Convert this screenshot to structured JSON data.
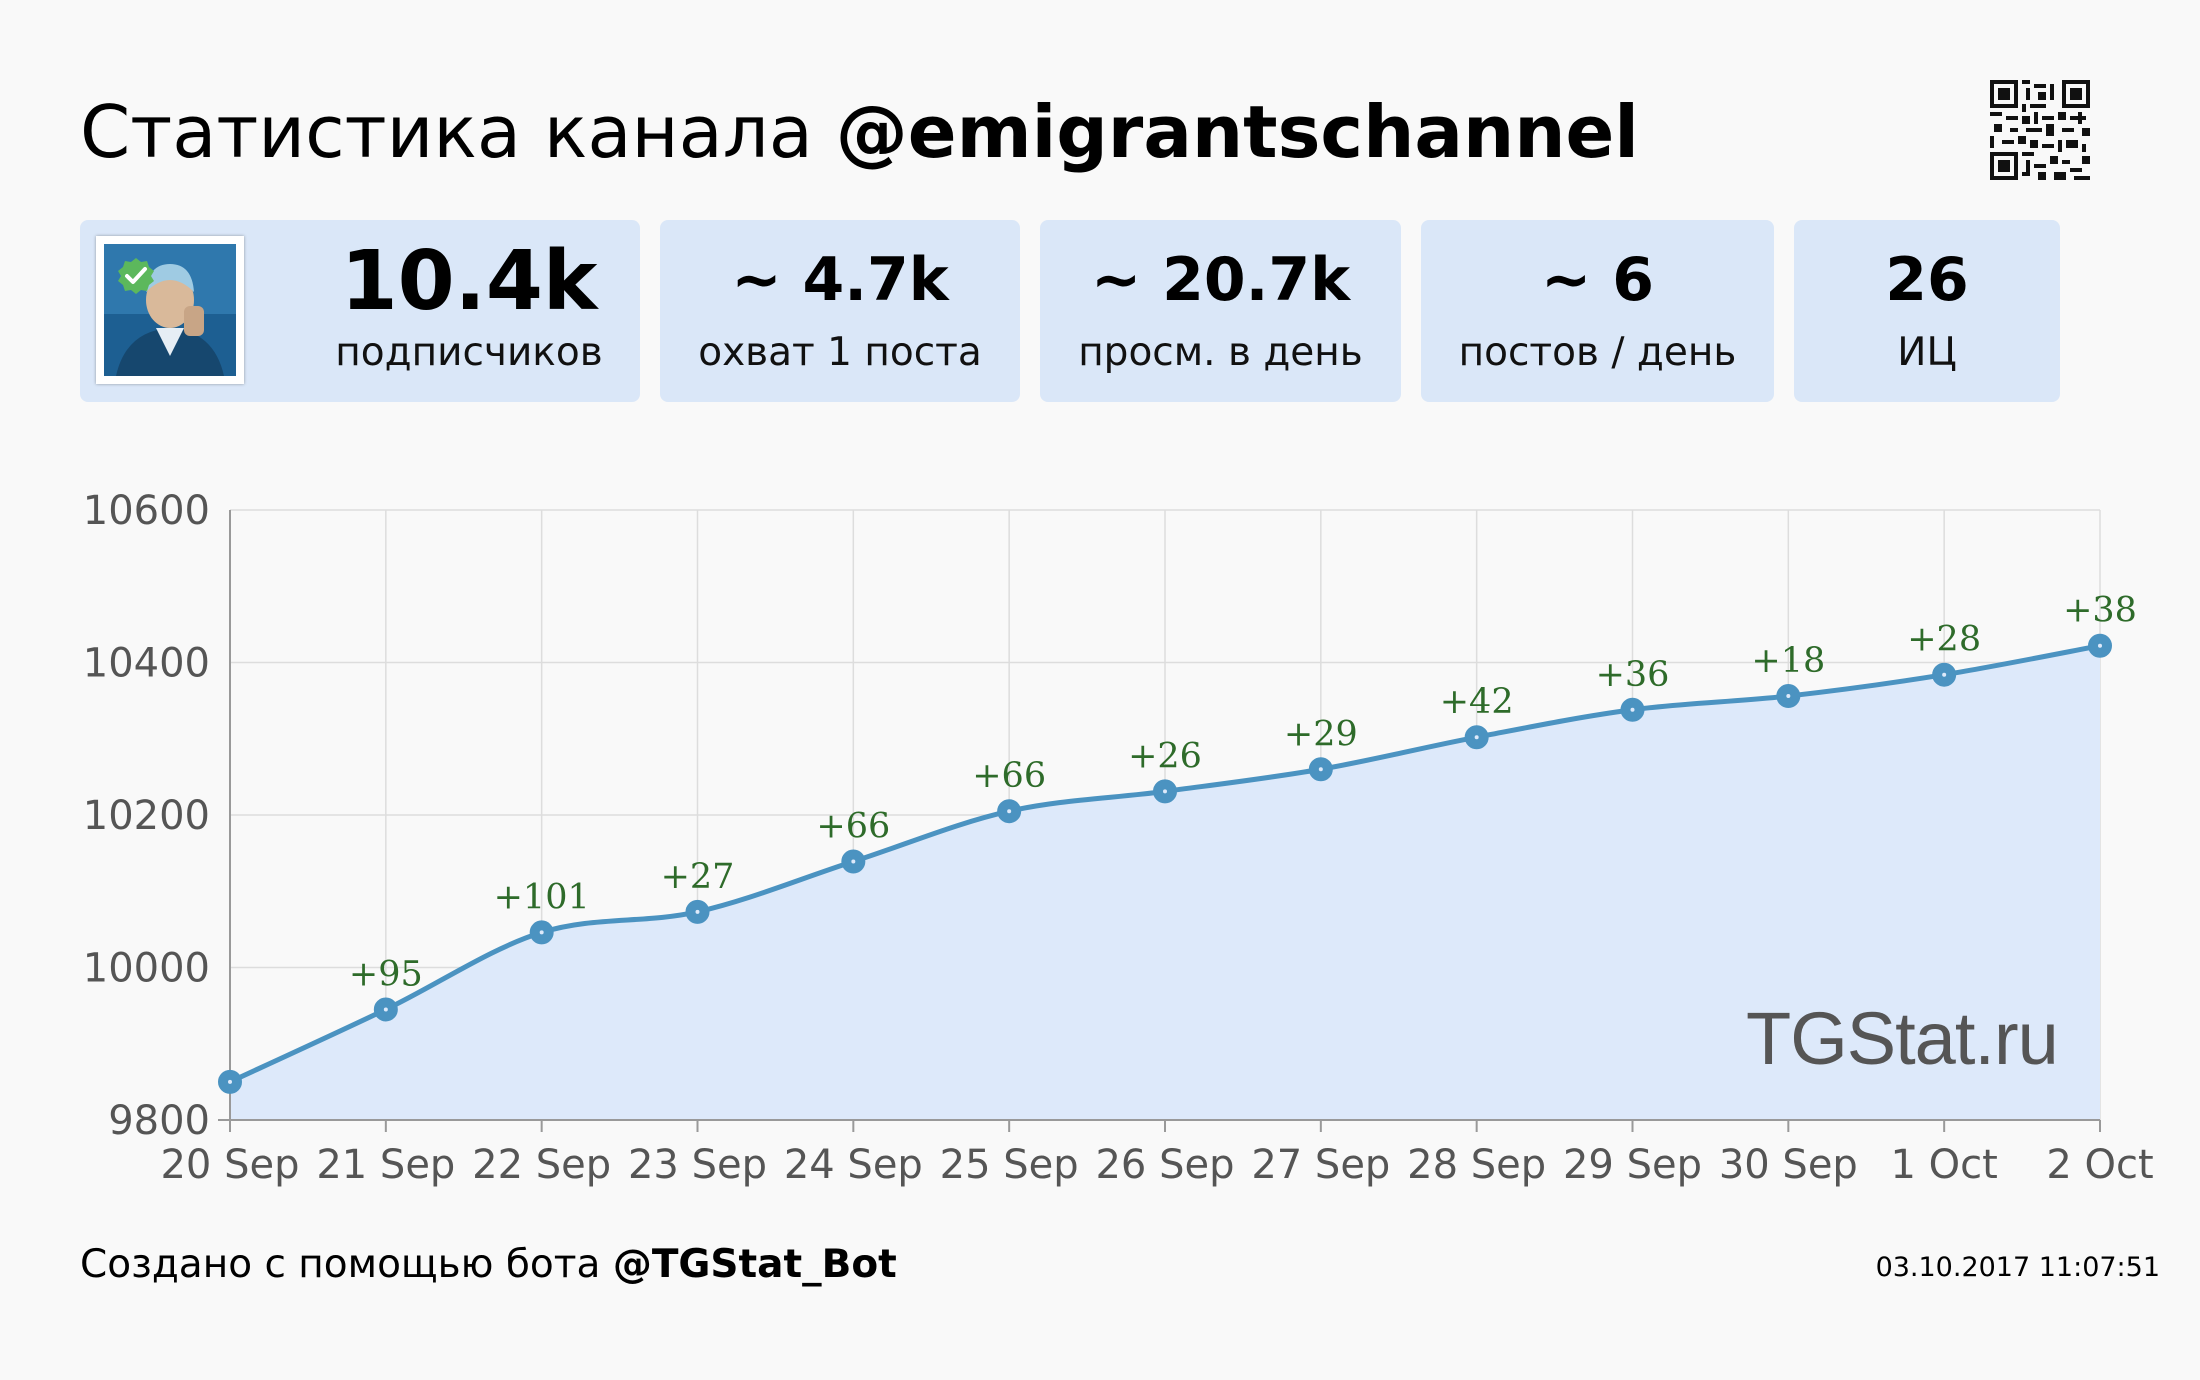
{
  "header": {
    "title_prefix": "Статистика канала",
    "channel": "@emigrantschannel"
  },
  "stats": {
    "subscribers": {
      "value": "10.4k",
      "label": "подписчиков"
    },
    "reach": {
      "value": "~ 4.7k",
      "label": "охват 1 поста"
    },
    "views": {
      "value": "~ 20.7k",
      "label": "просм. в день"
    },
    "posts": {
      "value": "~ 6",
      "label": "постов / день"
    },
    "ic": {
      "value": "26",
      "label": "ИЦ"
    }
  },
  "icons": {
    "qr": "qr-code-icon",
    "verified": "verified-check-icon",
    "avatar": "channel-avatar-icon"
  },
  "colors": {
    "card_bg": "#dae7f8",
    "line": "#4b93c1",
    "area": "#dde9fa",
    "label_green": "#2e6b2a",
    "badge_green": "#5cb85c"
  },
  "chart_data": {
    "type": "area",
    "categories": [
      "20 Sep",
      "21 Sep",
      "22 Sep",
      "23 Sep",
      "24 Sep",
      "25 Sep",
      "26 Sep",
      "27 Sep",
      "28 Sep",
      "29 Sep",
      "30 Sep",
      "1 Oct",
      "2 Oct"
    ],
    "values": [
      9850,
      9945,
      10046,
      10073,
      10139,
      10205,
      10231,
      10260,
      10302,
      10338,
      10356,
      10384,
      10422
    ],
    "data_labels": [
      "",
      "+95",
      "+101",
      "+27",
      "+66",
      "+66",
      "+26",
      "+29",
      "+42",
      "+36",
      "+18",
      "+28",
      "+38"
    ],
    "ylim": [
      9800,
      10600
    ],
    "yticks": [
      9800,
      10000,
      10200,
      10400,
      10600
    ],
    "grid": true,
    "legend": "none"
  },
  "watermark": "TGStat.ru",
  "footer": {
    "prefix": "Создано с помощью бота",
    "bot": "@TGStat_Bot",
    "timestamp": "03.10.2017 11:07:51"
  }
}
